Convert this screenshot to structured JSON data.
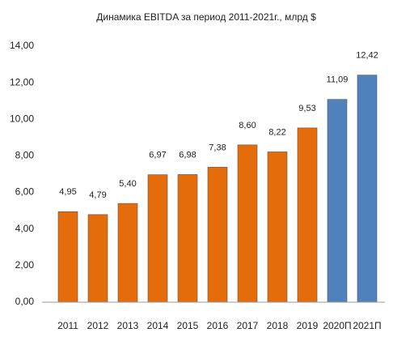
{
  "chart_data": {
    "type": "bar",
    "title": "Динамика EBITDA за период 2011-2021г.,  млрд $",
    "categories": [
      "2011",
      "2012",
      "2013",
      "2014",
      "2015",
      "2016",
      "2017",
      "2018",
      "2019",
      "2020П",
      "2021П"
    ],
    "values": [
      4.95,
      4.79,
      5.4,
      6.97,
      6.98,
      7.38,
      8.6,
      8.22,
      9.53,
      11.09,
      12.42
    ],
    "value_labels": [
      "4,95",
      "4,79",
      "5,40",
      "6,97",
      "6,98",
      "7,38",
      "8,60",
      "8,22",
      "9,53",
      "11,09",
      "12,42"
    ],
    "colors": [
      "#e46c0a",
      "#e46c0a",
      "#e46c0a",
      "#e46c0a",
      "#e46c0a",
      "#e46c0a",
      "#e46c0a",
      "#e46c0a",
      "#e46c0a",
      "#4f81bd",
      "#4f81bd"
    ],
    "ylim": [
      0,
      14
    ],
    "yticks": [
      {
        "value": 0,
        "label": "0,00"
      },
      {
        "value": 2,
        "label": "2,00"
      },
      {
        "value": 4,
        "label": "4,00"
      },
      {
        "value": 6,
        "label": "6,00"
      },
      {
        "value": 8,
        "label": "8,00"
      },
      {
        "value": 10,
        "label": "10,00"
      },
      {
        "value": 12,
        "label": "12,00"
      },
      {
        "value": 14,
        "label": "14,00"
      }
    ],
    "grid": false
  }
}
